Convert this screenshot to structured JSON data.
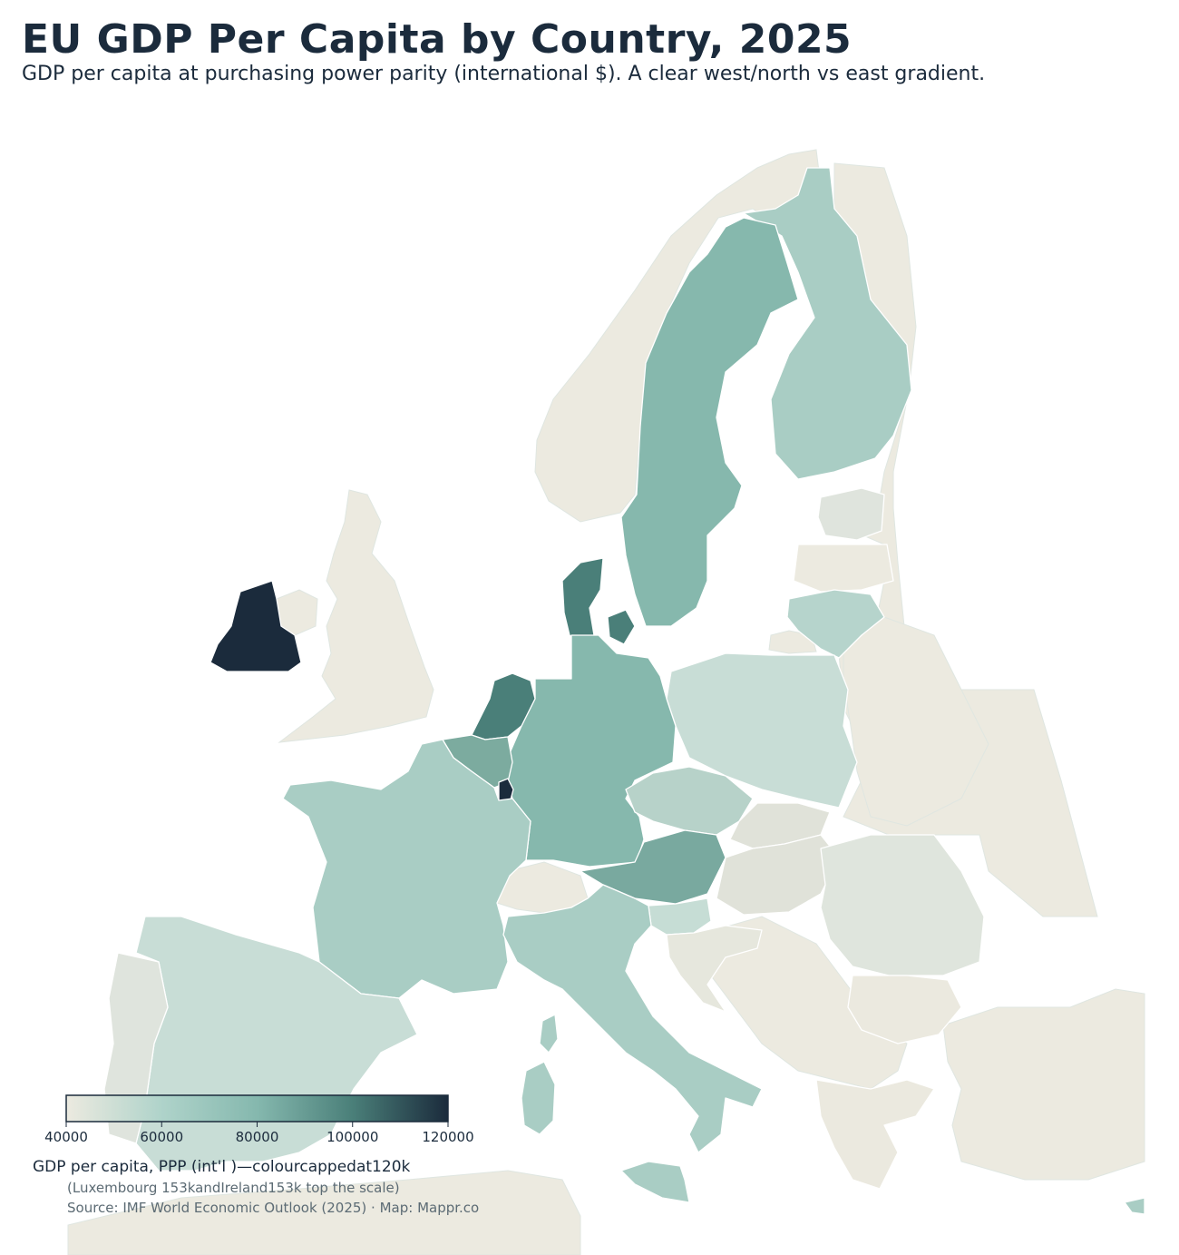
{
  "title": "EU GDP Per Capita by Country, 2025",
  "subtitle": "GDP per capita at purchasing power parity (international $). A clear west/north vs east gradient.",
  "colorbar": {
    "label": "GDP per capita, PPP (int'l )—colourcappedat120k",
    "note": "(Luxembourg 153kandIreland153k top the scale)",
    "ticks": [
      "40000",
      "60000",
      "80000",
      "100000",
      "120000"
    ],
    "min": 40000,
    "max": 120000,
    "colors": [
      "#eceae0",
      "#afd3ca",
      "#85b8ae",
      "#4a7f79",
      "#1b2b3c"
    ]
  },
  "source": "Source: IMF World Economic Outlook (2025) · Map: Mappr.co",
  "colors": {
    "non_eu": "#eceae0",
    "title": "#1b2b3c"
  }
}
